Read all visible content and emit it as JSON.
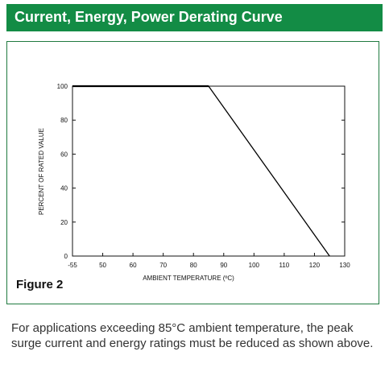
{
  "header": {
    "title": "Current, Energy, Power Derating Curve",
    "background": "#138c45"
  },
  "figure": {
    "label": "Figure 2",
    "border_color": "#1f7a3f"
  },
  "caption": "For applications exceeding 85°C ambient temperature, the peak surge current and energy ratings must be reduced as shown above.",
  "chart_data": {
    "type": "line",
    "xlabel": "AMBIENT TEMPERATURE (ºC)",
    "ylabel": "PERCENT OF RATED VALUE",
    "x_ticks": [
      "-55",
      "50",
      "60",
      "70",
      "80",
      "90",
      "100",
      "110",
      "120",
      "130"
    ],
    "y_ticks": [
      0,
      20,
      40,
      60,
      80,
      100
    ],
    "xlim": [
      -55,
      130
    ],
    "ylim": [
      0,
      100
    ],
    "grid": false,
    "series": [
      {
        "x": [
          -55,
          85,
          125
        ],
        "y": [
          100,
          100,
          0
        ]
      }
    ]
  }
}
